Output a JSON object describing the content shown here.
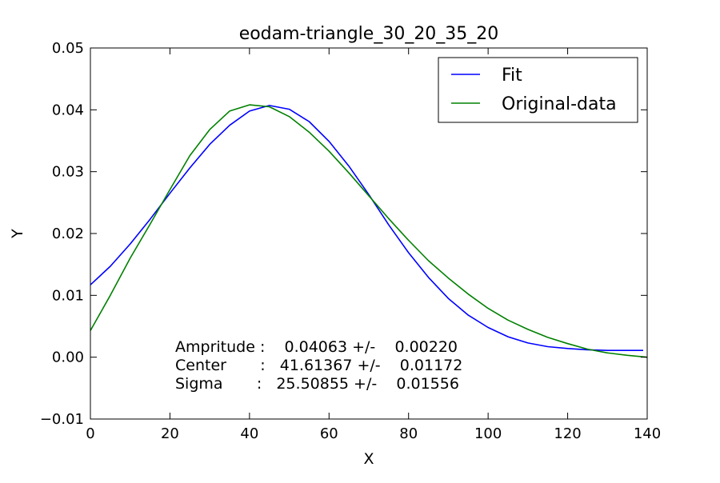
{
  "chart_data": {
    "type": "line",
    "title": "eodam-triangle_30_20_35_20",
    "xlabel": "X",
    "ylabel": "Y",
    "xlim": [
      0,
      140
    ],
    "ylim": [
      -0.01,
      0.05
    ],
    "xticks": [
      0,
      20,
      40,
      60,
      80,
      100,
      120,
      140
    ],
    "xtick_labels": [
      "0",
      "20",
      "40",
      "60",
      "80",
      "100",
      "120",
      "140"
    ],
    "yticks": [
      -0.01,
      0.0,
      0.01,
      0.02,
      0.03,
      0.04,
      0.05
    ],
    "ytick_labels": [
      "−0.01",
      "0.00",
      "0.01",
      "0.02",
      "0.03",
      "0.04",
      "0.05"
    ],
    "grid": false,
    "legend_position": "top-right",
    "series": [
      {
        "name": "Fit",
        "color": "#0000ff",
        "x": [
          0,
          5,
          10,
          15,
          20,
          25,
          30,
          35,
          40,
          45,
          50,
          55,
          60,
          65,
          70,
          75,
          80,
          85,
          90,
          95,
          100,
          105,
          110,
          115,
          120,
          125,
          130,
          135,
          139
        ],
        "y": [
          0.0117,
          0.0147,
          0.0183,
          0.0223,
          0.0265,
          0.0306,
          0.0344,
          0.0375,
          0.0398,
          0.0407,
          0.0401,
          0.0381,
          0.0349,
          0.0309,
          0.0263,
          0.0214,
          0.0169,
          0.0129,
          0.0095,
          0.0068,
          0.0048,
          0.0033,
          0.0023,
          0.0017,
          0.0014,
          0.0012,
          0.0011,
          0.0011,
          0.0011
        ]
      },
      {
        "name": "Original-data",
        "color": "#008000",
        "x": [
          0,
          5,
          10,
          15,
          20,
          25,
          30,
          35,
          40,
          45,
          50,
          55,
          60,
          65,
          70,
          75,
          80,
          85,
          90,
          95,
          100,
          105,
          110,
          115,
          120,
          125,
          130,
          135,
          140
        ],
        "y": [
          0.0043,
          0.01,
          0.016,
          0.0215,
          0.0271,
          0.0326,
          0.0368,
          0.0398,
          0.0408,
          0.0405,
          0.0389,
          0.0364,
          0.0333,
          0.0298,
          0.0261,
          0.0224,
          0.0189,
          0.0156,
          0.0128,
          0.0102,
          0.0079,
          0.006,
          0.0045,
          0.0032,
          0.0022,
          0.0013,
          0.0007,
          0.0003,
          0.0
        ]
      }
    ],
    "annotations": [
      "Ampritude :    0.04063 +/-    0.00220",
      "Center       :   41.61367 +/-    0.01172",
      "Sigma       :   25.50855 +/-    0.01556"
    ]
  }
}
